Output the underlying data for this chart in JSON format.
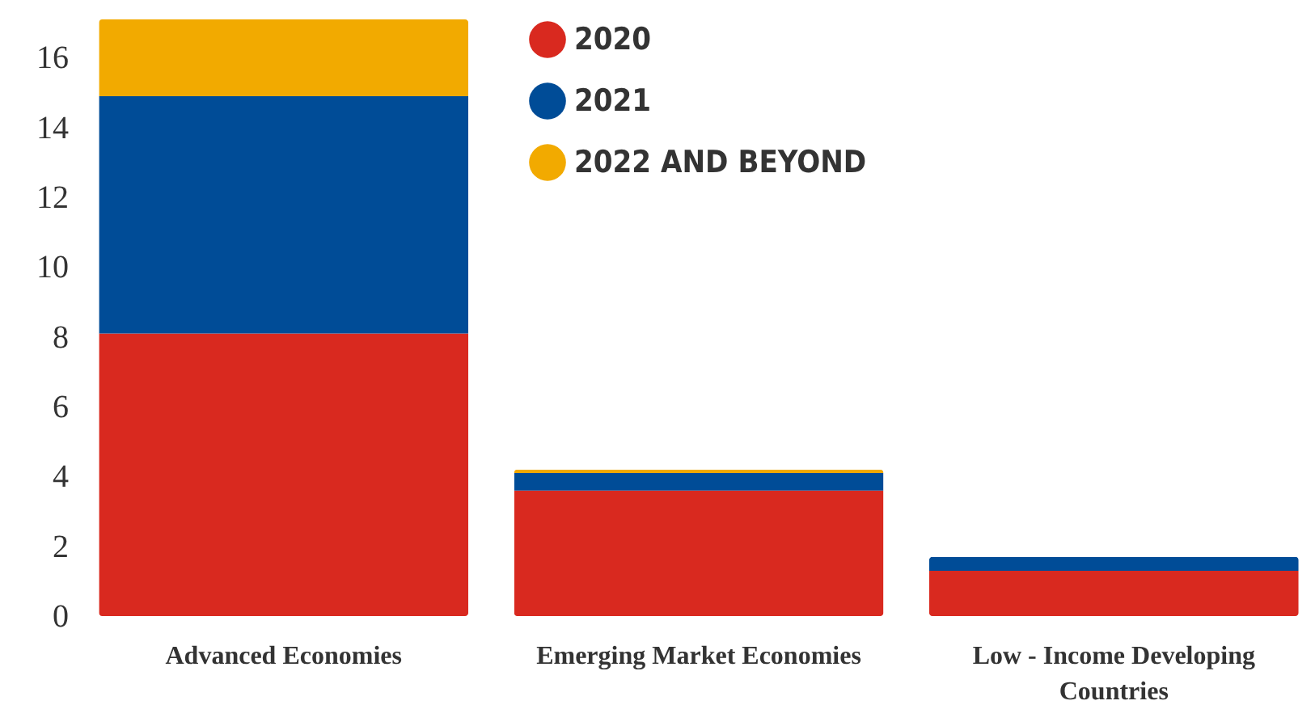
{
  "chart_data": {
    "type": "bar",
    "stacked": true,
    "categories": [
      "Advanced Economies",
      "Emerging Market Economies",
      "Low - Income Developing Countries"
    ],
    "series": [
      {
        "name": "2020",
        "color": "#d9291f",
        "values": [
          8.1,
          3.6,
          1.3
        ]
      },
      {
        "name": "2021",
        "color": "#004c97",
        "values": [
          6.8,
          0.5,
          0.4
        ]
      },
      {
        "name": "2022 AND BEYOND",
        "color": "#f2aa00",
        "values": [
          2.2,
          0.1,
          null
        ]
      }
    ],
    "ylim": [
      0,
      17.1
    ],
    "yticks": [
      0,
      2,
      4,
      6,
      8,
      10,
      12,
      14,
      16
    ],
    "grid": false,
    "legend": "top"
  }
}
